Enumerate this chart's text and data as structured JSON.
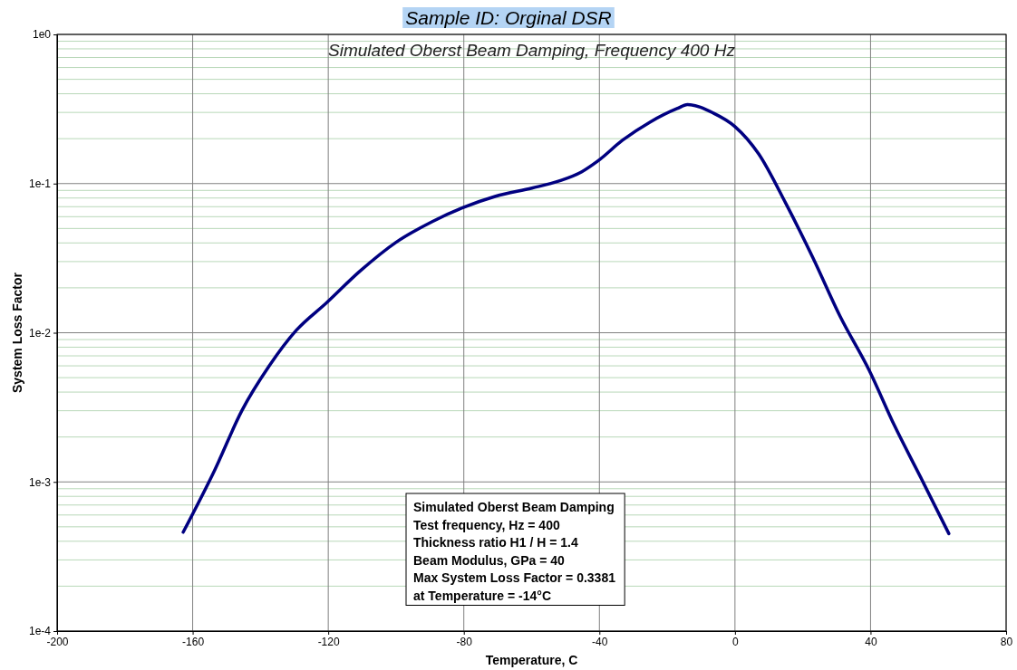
{
  "chart_data": {
    "type": "line",
    "title": "Sample ID: Orginal DSR",
    "subtitle": "Simulated Oberst Beam Damping, Frequency 400 Hz",
    "xlabel": "Temperature, C",
    "ylabel": "System Loss Factor",
    "log": "y",
    "grid": true,
    "marker": "none",
    "line_style": "solid",
    "xlim": [
      -200,
      80
    ],
    "xticks": [
      -200,
      -160,
      -120,
      -80,
      -40,
      0,
      40,
      80
    ],
    "ylim": [
      0.0001,
      1
    ],
    "yticks": [
      {
        "value": 0.0001,
        "label": "1e-4"
      },
      {
        "value": 0.001,
        "label": "1e-3"
      },
      {
        "value": 0.01,
        "label": "1e-2"
      },
      {
        "value": 0.1,
        "label": "1e-1"
      },
      {
        "value": 1,
        "label": "1e0"
      }
    ],
    "series": [
      {
        "color": "#000080",
        "x": [
          -162.8,
          -153.5,
          -145.5,
          -137.4,
          -129.4,
          -120.6,
          -110.7,
          -100,
          -89.3,
          -80.5,
          -70.6,
          -59.9,
          -51.9,
          -45.2,
          -40.4,
          -33.2,
          -25.1,
          -17.1,
          -14,
          -6.4,
          0,
          7,
          15,
          23,
          31,
          39.6,
          47,
          55,
          63.1
        ],
        "values": [
          0.00046,
          0.0012,
          0.003,
          0.006,
          0.0104,
          0.0158,
          0.0258,
          0.0404,
          0.0556,
          0.0686,
          0.0822,
          0.0933,
          0.104,
          0.12,
          0.142,
          0.195,
          0.258,
          0.318,
          0.3381,
          0.297,
          0.241,
          0.158,
          0.0736,
          0.0318,
          0.0129,
          0.0056,
          0.0024,
          0.00105,
          0.00045
        ]
      }
    ],
    "annotations": [
      "Simulated Oberst Beam Damping",
      "Test frequency, Hz = 400",
      "Thickness ratio H1 / H = 1.4",
      "Beam Modulus, GPa = 40",
      "Max System Loss Factor = 0.3381",
      "at Temperature = -14°C"
    ]
  }
}
